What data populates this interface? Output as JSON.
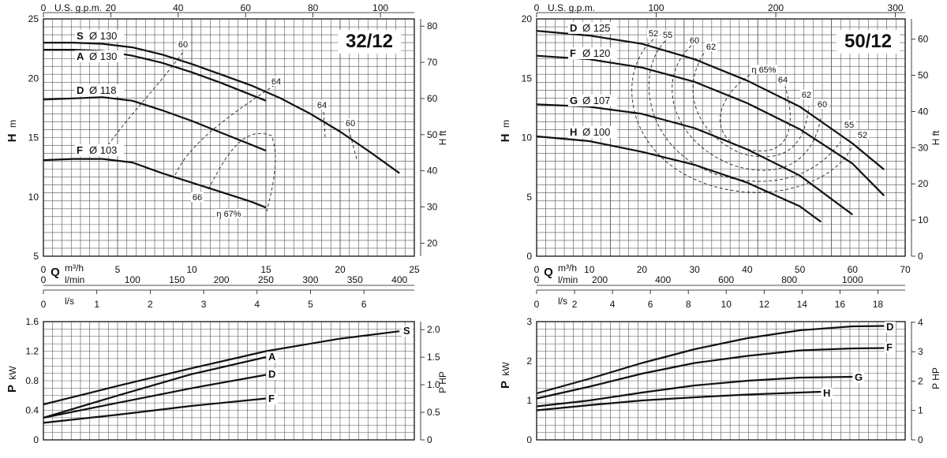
{
  "charts": [
    {
      "title": "32/12",
      "q_label": "Q",
      "h_label": "H",
      "h_unit": "m",
      "h_ft_label": "H ft",
      "gpm_label": "U.S. g.p.m.",
      "m3h_label": "m³/h",
      "lmin_label": "l/min",
      "ls_label": "l/s",
      "p_label": "P",
      "p_unit": "kW",
      "p_hp_label": "P HP",
      "q_range": [
        0,
        25
      ],
      "q_ticks": [
        0,
        5,
        10,
        15,
        20,
        25
      ],
      "h_range": [
        5,
        25
      ],
      "h_ticks": [
        5,
        10,
        15,
        20,
        25
      ],
      "hft_ticks": [
        "20",
        "30",
        "40",
        "50",
        "60",
        "70",
        "80"
      ],
      "hft_values": [
        20,
        30,
        40,
        50,
        60,
        70,
        80
      ],
      "gpm_ticks": [
        "0",
        "20",
        "40",
        "60",
        "80",
        "100"
      ],
      "gpm_values": [
        0,
        20,
        40,
        60,
        80,
        100
      ],
      "lmin_ticks": [
        "0",
        "100",
        "150",
        "200",
        "250",
        "300",
        "350",
        "400"
      ],
      "lmin_values": [
        0,
        100,
        150,
        200,
        250,
        300,
        350,
        400
      ],
      "ls_ticks": [
        "0",
        "1",
        "2",
        "3",
        "4",
        "5",
        "6"
      ],
      "ls_values": [
        0,
        1,
        2,
        3,
        4,
        5,
        6
      ],
      "p_range": [
        0,
        1.6
      ],
      "p_ticks": [
        "0",
        "0.4",
        "0.8",
        "1.2",
        "1.6"
      ],
      "p_values": [
        0,
        0.4,
        0.8,
        1.2,
        1.6
      ],
      "php_ticks": [
        "0",
        "0.5",
        "1.0",
        "1.5",
        "2.0"
      ],
      "php_values": [
        0,
        0.5,
        1.0,
        1.5,
        2.0
      ]
    },
    {
      "title": "50/12",
      "q_label": "Q",
      "h_label": "H",
      "h_unit": "m",
      "h_ft_label": "H ft",
      "gpm_label": "U.S. g.p.m.",
      "m3h_label": "m³/h",
      "lmin_label": "l/min",
      "ls_label": "l/s",
      "p_label": "P",
      "p_unit": "kW",
      "p_hp_label": "P HP",
      "q_range": [
        0,
        70
      ],
      "q_ticks": [
        0,
        10,
        20,
        30,
        40,
        50,
        60,
        70
      ],
      "h_range": [
        0,
        20
      ],
      "h_ticks": [
        0,
        5,
        10,
        15,
        20
      ],
      "hft_ticks": [
        "0",
        "10",
        "20",
        "30",
        "40",
        "50",
        "60"
      ],
      "hft_values": [
        0,
        10,
        20,
        30,
        40,
        50,
        60
      ],
      "gpm_ticks": [
        "0",
        "100",
        "200",
        "300"
      ],
      "gpm_values": [
        0,
        100,
        200,
        300
      ],
      "lmin_ticks": [
        "0",
        "200",
        "400",
        "600",
        "800",
        "1000"
      ],
      "lmin_values": [
        0,
        200,
        400,
        600,
        800,
        1000
      ],
      "ls_ticks": [
        "0",
        "2",
        "4",
        "6",
        "8",
        "10",
        "12",
        "14",
        "16",
        "18"
      ],
      "ls_values": [
        0,
        2,
        4,
        6,
        8,
        10,
        12,
        14,
        16,
        18
      ],
      "p_range": [
        0,
        3
      ],
      "p_ticks": [
        "0",
        "1",
        "2",
        "3"
      ],
      "p_values": [
        0,
        1,
        2,
        3
      ],
      "php_ticks": [
        "0",
        "1",
        "2",
        "3",
        "4"
      ],
      "php_values": [
        0,
        1,
        2,
        3,
        4
      ]
    }
  ],
  "chart_data": [
    {
      "type": "line",
      "title": "32/12",
      "x_unit": "m³/h",
      "xlim": [
        0,
        25
      ],
      "ylim": [
        5,
        25
      ],
      "series": [
        {
          "name": "S",
          "diameter": "Ø 130",
          "x": [
            0,
            2,
            4,
            6,
            8,
            10,
            12,
            14,
            16,
            18,
            20,
            22,
            24
          ],
          "y": [
            23.0,
            23.0,
            22.9,
            22.6,
            22.0,
            21.2,
            20.3,
            19.4,
            18.3,
            17.0,
            15.5,
            13.8,
            12.0
          ]
        },
        {
          "name": "A",
          "diameter": "Ø 130",
          "x": [
            0,
            2,
            4,
            6,
            8,
            10,
            12,
            14,
            15
          ],
          "y": [
            22.4,
            22.4,
            22.3,
            21.9,
            21.3,
            20.5,
            19.6,
            18.6,
            18.1
          ]
        },
        {
          "name": "D",
          "diameter": "Ø 118",
          "x": [
            0,
            2,
            4,
            6,
            8,
            10,
            12,
            14,
            15
          ],
          "y": [
            18.2,
            18.3,
            18.4,
            18.1,
            17.3,
            16.4,
            15.4,
            14.4,
            13.9
          ]
        },
        {
          "name": "F",
          "diameter": "Ø 103",
          "x": [
            0,
            2,
            4,
            6,
            8,
            10,
            12,
            14,
            15
          ],
          "y": [
            13.1,
            13.2,
            13.2,
            12.9,
            12.0,
            11.2,
            10.4,
            9.6,
            9.1
          ]
        }
      ],
      "efficiency_labels": [
        "60",
        "64",
        "64",
        "60",
        "66",
        "η 67%"
      ],
      "power": {
        "ylabel": "P kW",
        "ylim": [
          0,
          1.6
        ],
        "series": [
          {
            "name": "S",
            "x": [
              0,
              5,
              10,
              15,
              20,
              24
            ],
            "y": [
              0.48,
              0.73,
              0.97,
              1.2,
              1.37,
              1.47
            ]
          },
          {
            "name": "A",
            "x": [
              0,
              5,
              10,
              15
            ],
            "y": [
              0.3,
              0.6,
              0.89,
              1.12
            ]
          },
          {
            "name": "D",
            "x": [
              0,
              5,
              10,
              15
            ],
            "y": [
              0.3,
              0.5,
              0.7,
              0.88
            ]
          },
          {
            "name": "F",
            "x": [
              0,
              5,
              10,
              15
            ],
            "y": [
              0.23,
              0.34,
              0.46,
              0.56
            ]
          }
        ]
      }
    },
    {
      "type": "line",
      "title": "50/12",
      "x_unit": "m³/h",
      "xlim": [
        0,
        70
      ],
      "ylim": [
        0,
        20
      ],
      "series": [
        {
          "name": "D",
          "diameter": "Ø 125",
          "x": [
            0,
            10,
            20,
            30,
            40,
            50,
            60,
            66
          ],
          "y": [
            19.0,
            18.6,
            17.9,
            16.6,
            14.8,
            12.6,
            9.5,
            7.3
          ]
        },
        {
          "name": "F",
          "diameter": "Ø 120",
          "x": [
            0,
            10,
            20,
            30,
            40,
            50,
            60,
            66
          ],
          "y": [
            16.9,
            16.6,
            15.9,
            14.7,
            12.9,
            10.7,
            7.8,
            5.1
          ]
        },
        {
          "name": "G",
          "diameter": "Ø 107",
          "x": [
            0,
            10,
            20,
            30,
            40,
            50,
            60
          ],
          "y": [
            12.8,
            12.6,
            12.0,
            10.8,
            9.0,
            6.8,
            3.5
          ]
        },
        {
          "name": "H",
          "diameter": "Ø 100",
          "x": [
            0,
            10,
            20,
            30,
            40,
            50,
            54
          ],
          "y": [
            10.1,
            9.7,
            8.8,
            7.7,
            6.2,
            4.2,
            2.9
          ]
        }
      ],
      "efficiency_labels": [
        "52",
        "55",
        "60",
        "62",
        "η 65%",
        "64",
        "62",
        "60",
        "55",
        "52"
      ],
      "power": {
        "ylabel": "P kW",
        "ylim": [
          0,
          3
        ],
        "series": [
          {
            "name": "D",
            "x": [
              0,
              10,
              20,
              30,
              40,
              50,
              60,
              66
            ],
            "y": [
              1.18,
              1.55,
              1.95,
              2.3,
              2.58,
              2.78,
              2.88,
              2.89
            ]
          },
          {
            "name": "F",
            "x": [
              0,
              10,
              20,
              30,
              40,
              50,
              60,
              66
            ],
            "y": [
              1.05,
              1.35,
              1.68,
              1.95,
              2.13,
              2.27,
              2.32,
              2.33
            ]
          },
          {
            "name": "G",
            "x": [
              0,
              10,
              20,
              30,
              40,
              50,
              60
            ],
            "y": [
              0.85,
              1.0,
              1.2,
              1.38,
              1.5,
              1.58,
              1.6
            ]
          },
          {
            "name": "H",
            "x": [
              0,
              10,
              20,
              30,
              40,
              50,
              54
            ],
            "y": [
              0.75,
              0.88,
              1.0,
              1.08,
              1.15,
              1.2,
              1.22
            ]
          }
        ]
      }
    }
  ]
}
